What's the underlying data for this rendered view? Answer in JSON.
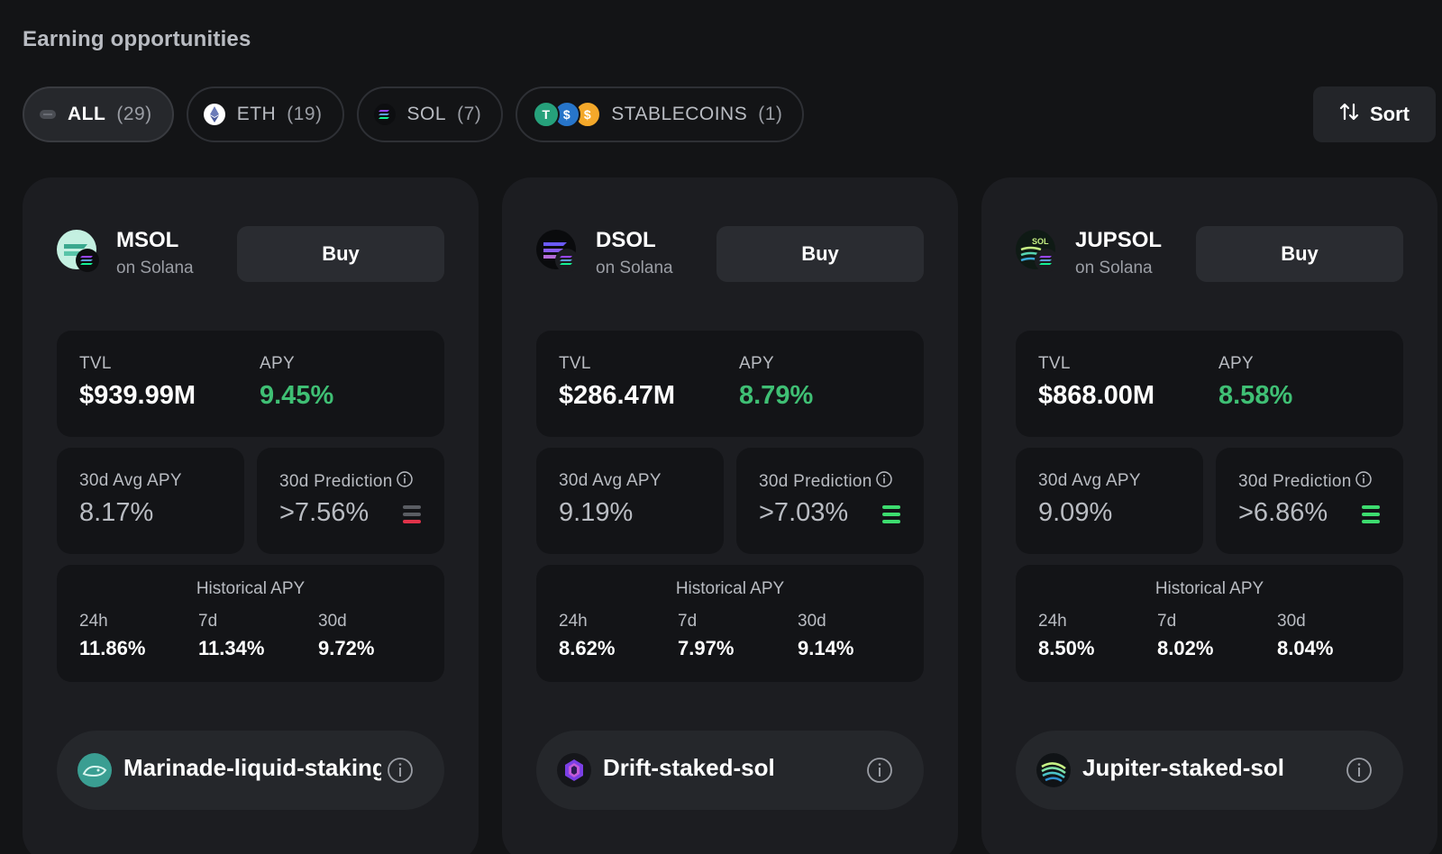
{
  "header": {
    "title": "Earning opportunities"
  },
  "filters": [
    {
      "label": "ALL",
      "count": "(29)",
      "icon": "all-pill-icon"
    },
    {
      "label": "ETH",
      "count": "(19)",
      "icon": "eth-icon"
    },
    {
      "label": "SOL",
      "count": "(7)",
      "icon": "sol-icon"
    },
    {
      "label": "STABLECOINS",
      "count": "(1)",
      "icon": "stablecoins-icon"
    }
  ],
  "sort": {
    "label": "Sort",
    "icon": "sort-arrows-icon"
  },
  "cards": [
    {
      "asset": "MSOL",
      "chain": "on Solana",
      "buy": "Buy",
      "tvl_label": "TVL",
      "tvl": "$939.99M",
      "apy_label": "APY",
      "apy": "9.45%",
      "avg_label": "30d Avg APY",
      "avg": "8.17%",
      "pred_label": "30d Prediction",
      "pred": ">7.56%",
      "pred_signal": "down",
      "signal_color": "#e0334a",
      "hist_title": "Historical APY",
      "hist": [
        {
          "period": "24h",
          "value": "11.86%"
        },
        {
          "period": "7d",
          "value": "11.34%"
        },
        {
          "period": "30d",
          "value": "9.72%"
        }
      ],
      "protocol": "Marinade-liquid-staking",
      "protocol_icon": "marinade-icon"
    },
    {
      "asset": "DSOL",
      "chain": "on Solana",
      "buy": "Buy",
      "tvl_label": "TVL",
      "tvl": "$286.47M",
      "apy_label": "APY",
      "apy": "8.79%",
      "avg_label": "30d Avg APY",
      "avg": "9.19%",
      "pred_label": "30d Prediction",
      "pred": ">7.03%",
      "pred_signal": "up",
      "signal_color": "#3ddc6f",
      "hist_title": "Historical APY",
      "hist": [
        {
          "period": "24h",
          "value": "8.62%"
        },
        {
          "period": "7d",
          "value": "7.97%"
        },
        {
          "period": "30d",
          "value": "9.14%"
        }
      ],
      "protocol": "Drift-staked-sol",
      "protocol_icon": "drift-icon"
    },
    {
      "asset": "JUPSOL",
      "chain": "on Solana",
      "buy": "Buy",
      "tvl_label": "TVL",
      "tvl": "$868.00M",
      "apy_label": "APY",
      "apy": "8.58%",
      "avg_label": "30d Avg APY",
      "avg": "9.09%",
      "pred_label": "30d Prediction",
      "pred": ">6.86%",
      "pred_signal": "up",
      "signal_color": "#3ddc6f",
      "hist_title": "Historical APY",
      "hist": [
        {
          "period": "24h",
          "value": "8.50%"
        },
        {
          "period": "7d",
          "value": "8.02%"
        },
        {
          "period": "30d",
          "value": "8.04%"
        }
      ],
      "protocol": "Jupiter-staked-sol",
      "protocol_icon": "jupiter-icon"
    }
  ]
}
